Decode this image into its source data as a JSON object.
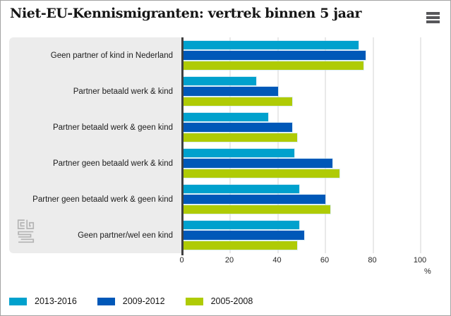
{
  "title": "Niet-EU-Kennismigranten: vertrek binnen 5 jaar",
  "menu": {
    "icon": "hamburger-icon"
  },
  "logo": {
    "icon": "cbs-logo"
  },
  "chart_data": {
    "type": "bar",
    "orientation": "horizontal",
    "title": "Niet-EU-Kennismigranten: vertrek binnen 5 jaar",
    "categories": [
      "Geen partner of kind in Nederland",
      "Partner betaald werk & kind",
      "Partner betaald werk & geen kind",
      "Partner geen betaald werk & kind",
      "Partner geen betaald werk & geen kind",
      "Geen partner/wel een kind"
    ],
    "series": [
      {
        "name": "2013-2016",
        "color": "#00a1cd",
        "values": [
          74,
          31,
          36,
          47,
          49,
          49
        ]
      },
      {
        "name": "2009-2012",
        "color": "#0058b8",
        "values": [
          77,
          40,
          46,
          63,
          60,
          51
        ]
      },
      {
        "name": "2005-2008",
        "color": "#afcb05",
        "values": [
          76,
          46,
          48,
          66,
          62,
          48
        ]
      }
    ],
    "xlabel": "%",
    "xlim": [
      0,
      100
    ],
    "xticks": [
      0,
      20,
      40,
      60,
      80,
      100
    ],
    "grid": true,
    "legend_position": "bottom",
    "panel_color": "#ececec"
  }
}
